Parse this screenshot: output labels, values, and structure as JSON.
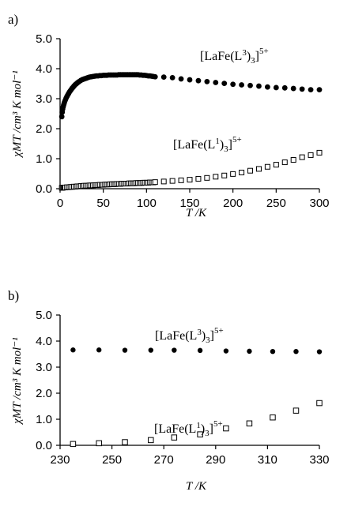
{
  "chart_data": [
    {
      "type": "scatter",
      "panel_label": "a)",
      "xlabel": "T /K",
      "ylabel": "χMT /cm³ K mol⁻¹",
      "xlim": [
        0,
        300
      ],
      "ylim": [
        0,
        5
      ],
      "xticks": [
        "0",
        "50",
        "100",
        "150",
        "200",
        "250",
        "300"
      ],
      "yticks": [
        "0.0",
        "1.0",
        "2.0",
        "3.0",
        "4.0",
        "5.0"
      ],
      "grid": false,
      "series": [
        {
          "name": "[LaFe(L³)₃]⁵⁺",
          "marker": "filled-circle",
          "label_main": "[LaFe(L",
          "label_sup1": "3",
          "label_mid": ")",
          "label_sub": "3",
          "label_end": "]",
          "label_charge": "5+",
          "x": [
            2,
            2.5,
            3,
            3.5,
            4,
            4.5,
            5,
            6,
            7,
            8,
            9,
            10,
            11,
            12,
            13,
            14,
            15,
            16,
            17,
            18,
            19,
            20,
            21,
            22,
            24,
            26,
            28,
            30,
            32,
            34,
            36,
            38,
            40,
            42,
            44,
            46,
            48,
            50,
            52,
            54,
            56,
            58,
            60,
            62,
            64,
            66,
            68,
            70,
            72,
            74,
            76,
            78,
            80,
            82,
            84,
            86,
            88,
            90,
            92,
            94,
            96,
            98,
            100,
            102,
            104,
            106,
            108,
            110,
            120,
            130,
            140,
            150,
            160,
            170,
            180,
            190,
            200,
            210,
            220,
            230,
            240,
            250,
            260,
            270,
            280,
            290,
            300
          ],
          "y": [
            2.4,
            2.55,
            2.65,
            2.72,
            2.78,
            2.83,
            2.88,
            2.95,
            3.02,
            3.08,
            3.13,
            3.18,
            3.23,
            3.27,
            3.31,
            3.35,
            3.38,
            3.42,
            3.45,
            3.48,
            3.5,
            3.53,
            3.55,
            3.57,
            3.61,
            3.64,
            3.66,
            3.68,
            3.7,
            3.72,
            3.73,
            3.74,
            3.75,
            3.76,
            3.76,
            3.77,
            3.77,
            3.78,
            3.78,
            3.78,
            3.79,
            3.79,
            3.79,
            3.79,
            3.79,
            3.79,
            3.8,
            3.8,
            3.8,
            3.8,
            3.8,
            3.8,
            3.8,
            3.8,
            3.8,
            3.8,
            3.8,
            3.8,
            3.79,
            3.79,
            3.78,
            3.78,
            3.77,
            3.76,
            3.76,
            3.75,
            3.74,
            3.73,
            3.72,
            3.7,
            3.66,
            3.63,
            3.6,
            3.57,
            3.54,
            3.51,
            3.48,
            3.46,
            3.44,
            3.42,
            3.39,
            3.37,
            3.36,
            3.34,
            3.32,
            3.3,
            3.3
          ]
        },
        {
          "name": "[LaFe(L¹)₃]⁵⁺",
          "marker": "open-square",
          "label_main": "[LaFe(L",
          "label_sup1": "1",
          "label_mid": ")",
          "label_sub": "3",
          "label_end": "]",
          "label_charge": "5+",
          "x": [
            2,
            3,
            4,
            5,
            6,
            8,
            10,
            12,
            14,
            16,
            18,
            20,
            22,
            24,
            26,
            28,
            30,
            32,
            34,
            36,
            38,
            40,
            42,
            44,
            46,
            48,
            50,
            52,
            54,
            56,
            58,
            60,
            62,
            64,
            66,
            68,
            70,
            72,
            74,
            76,
            78,
            80,
            82,
            84,
            86,
            88,
            90,
            92,
            94,
            96,
            98,
            100,
            102,
            104,
            106,
            108,
            110,
            120,
            130,
            140,
            150,
            160,
            170,
            180,
            190,
            200,
            210,
            220,
            230,
            240,
            250,
            260,
            270,
            280,
            290,
            300
          ],
          "y": [
            0.03,
            0.03,
            0.04,
            0.04,
            0.04,
            0.05,
            0.05,
            0.06,
            0.06,
            0.07,
            0.07,
            0.08,
            0.08,
            0.09,
            0.09,
            0.1,
            0.1,
            0.1,
            0.11,
            0.11,
            0.11,
            0.12,
            0.12,
            0.12,
            0.13,
            0.13,
            0.13,
            0.14,
            0.14,
            0.14,
            0.15,
            0.15,
            0.15,
            0.15,
            0.16,
            0.16,
            0.16,
            0.17,
            0.17,
            0.17,
            0.17,
            0.18,
            0.18,
            0.18,
            0.18,
            0.19,
            0.19,
            0.19,
            0.19,
            0.2,
            0.2,
            0.2,
            0.2,
            0.21,
            0.21,
            0.21,
            0.22,
            0.24,
            0.26,
            0.28,
            0.3,
            0.33,
            0.36,
            0.4,
            0.44,
            0.49,
            0.54,
            0.6,
            0.66,
            0.73,
            0.8,
            0.88,
            0.96,
            1.05,
            1.12,
            1.2
          ]
        }
      ]
    },
    {
      "type": "scatter",
      "panel_label": "b)",
      "xlabel": "T /K",
      "ylabel": "χMT /cm³ K mol⁻¹",
      "xlim": [
        230,
        330
      ],
      "ylim": [
        0,
        5
      ],
      "xticks": [
        "230",
        "250",
        "270",
        "290",
        "310",
        "330"
      ],
      "yticks": [
        "0.0",
        "1.0",
        "2.0",
        "3.0",
        "4.0",
        "5.0"
      ],
      "grid": false,
      "series": [
        {
          "name": "[LaFe(L³)₃]⁵⁺",
          "marker": "filled-circle",
          "label_main": "[LaFe(L",
          "label_sup1": "3",
          "label_mid": ")",
          "label_sub": "3",
          "label_end": "]",
          "label_charge": "5+",
          "x": [
            235,
            245,
            255,
            265,
            274,
            284,
            294,
            303,
            312,
            321,
            330
          ],
          "y": [
            3.66,
            3.66,
            3.65,
            3.65,
            3.65,
            3.64,
            3.62,
            3.61,
            3.6,
            3.6,
            3.59
          ]
        },
        {
          "name": "[LaFe(L¹)₃]⁵⁺",
          "marker": "open-square",
          "label_main": "[LaFe(L",
          "label_sup1": "1",
          "label_mid": ")",
          "label_sub": "3",
          "label_end": "]",
          "label_charge": "5+",
          "x": [
            235,
            245,
            255,
            265,
            274,
            284,
            294,
            303,
            312,
            321,
            330
          ],
          "y": [
            0.05,
            0.08,
            0.12,
            0.2,
            0.3,
            0.42,
            0.65,
            0.84,
            1.07,
            1.33,
            1.62
          ]
        }
      ]
    }
  ]
}
